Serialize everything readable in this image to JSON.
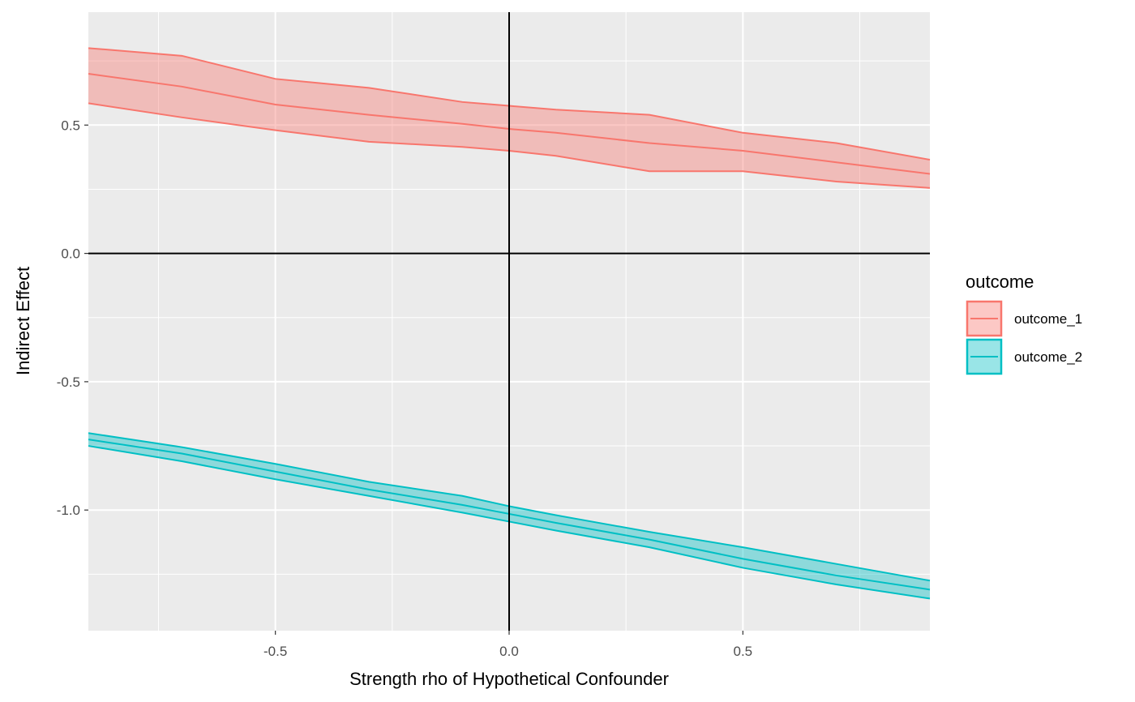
{
  "chart_data": {
    "type": "area",
    "xlabel": "Strength rho of Hypothetical Confounder",
    "ylabel": "Indirect Effect",
    "xlim": [
      -0.9,
      0.9
    ],
    "ylim": [
      -1.47,
      0.94
    ],
    "x_ticks": [
      -0.5,
      0.0,
      0.5
    ],
    "x_tick_labels": [
      "-0.5",
      "0.0",
      "0.5"
    ],
    "y_ticks": [
      0.5,
      0.0,
      -0.5,
      -1.0
    ],
    "y_tick_labels": [
      "0.5",
      "0.0",
      "-0.5",
      "-1.0"
    ],
    "grid": true,
    "reference_lines": {
      "x": 0,
      "y": 0
    },
    "legend": {
      "title": "outcome",
      "position": "right"
    },
    "series": [
      {
        "name": "outcome_1",
        "color": "#F8766D",
        "x": [
          -0.9,
          -0.7,
          -0.5,
          -0.3,
          -0.1,
          0.0,
          0.1,
          0.3,
          0.5,
          0.7,
          0.9
        ],
        "y": [
          0.7,
          0.65,
          0.58,
          0.54,
          0.505,
          0.485,
          0.47,
          0.43,
          0.4,
          0.355,
          0.31
        ],
        "lower": [
          0.585,
          0.53,
          0.48,
          0.435,
          0.415,
          0.4,
          0.38,
          0.32,
          0.32,
          0.28,
          0.255
        ],
        "upper": [
          0.8,
          0.77,
          0.68,
          0.645,
          0.59,
          0.575,
          0.56,
          0.54,
          0.47,
          0.43,
          0.365
        ]
      },
      {
        "name": "outcome_2",
        "color": "#00BFC4",
        "x": [
          -0.9,
          -0.7,
          -0.5,
          -0.3,
          -0.1,
          0.0,
          0.1,
          0.3,
          0.5,
          0.7,
          0.9
        ],
        "y": [
          -0.725,
          -0.78,
          -0.85,
          -0.92,
          -0.98,
          -1.015,
          -1.05,
          -1.115,
          -1.19,
          -1.255,
          -1.31
        ],
        "lower": [
          -0.75,
          -0.81,
          -0.88,
          -0.945,
          -1.01,
          -1.045,
          -1.08,
          -1.145,
          -1.225,
          -1.29,
          -1.345
        ],
        "upper": [
          -0.7,
          -0.755,
          -0.82,
          -0.89,
          -0.945,
          -0.985,
          -1.02,
          -1.085,
          -1.145,
          -1.21,
          -1.275
        ]
      }
    ]
  }
}
